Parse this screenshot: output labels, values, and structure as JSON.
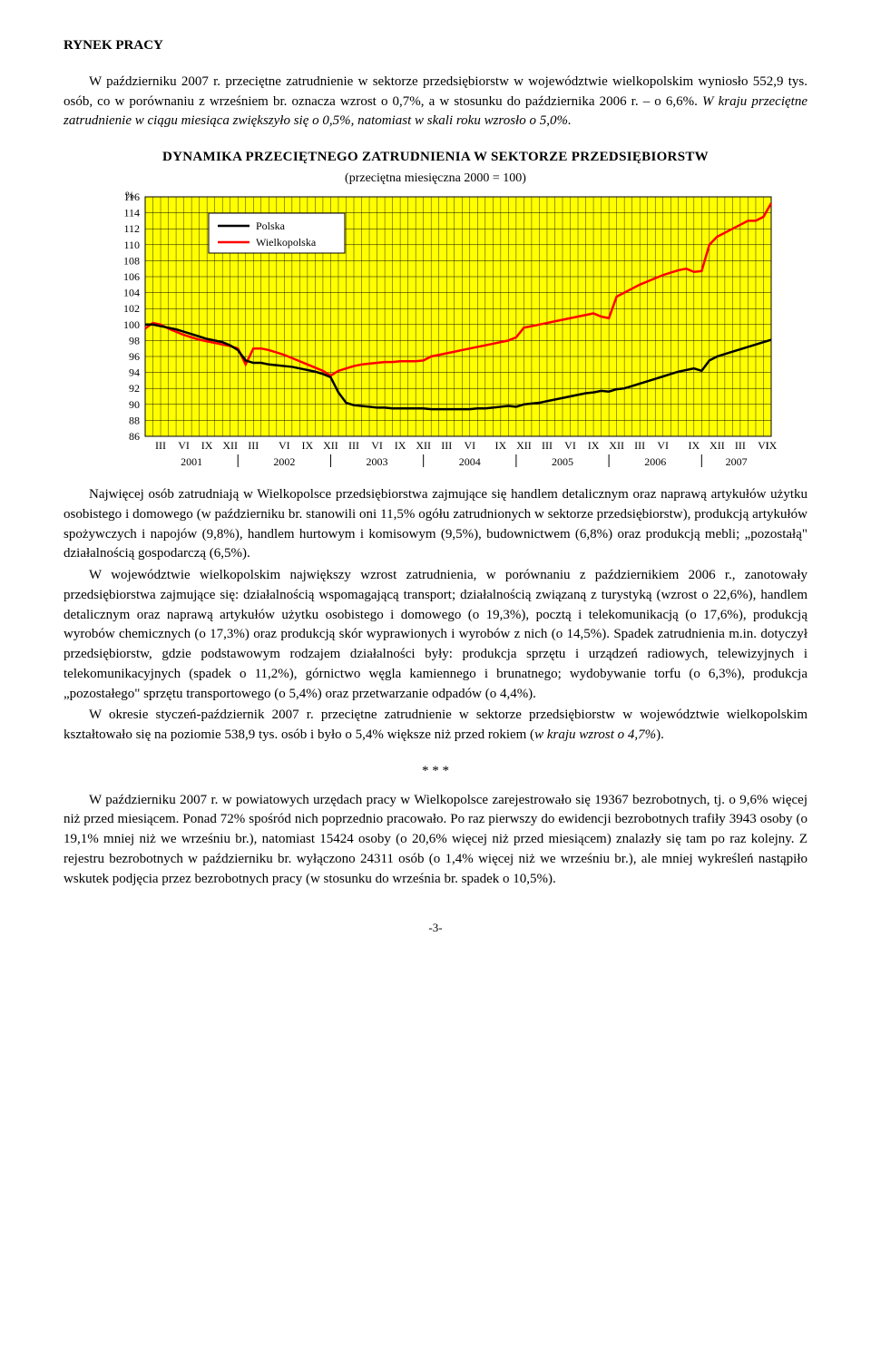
{
  "heading": "RYNEK  PRACY",
  "para1_a": "W październiku 2007 r. przeciętne zatrudnienie w sektorze przedsiębiorstw w województwie wielkopolskim wyniosło 552,9 tys. osób, co w porównaniu z wrześniem br. oznacza wzrost o 0,7%, a w stosunku do października 2006 r. – o 6,6%. ",
  "para1_b": "W kraju przeciętne zatrudnienie w ciągu miesiąca zwiększyło się o 0,5%, natomiast w skali roku wzrosło o 5,0%.",
  "chart": {
    "title": "DYNAMIKA  PRZECIĘTNEGO  ZATRUDNIENIA  W  SEKTORZE  PRZEDSIĘBIORSTW",
    "subtitle": "(przeciętna miesięczna 2000 = 100)",
    "y_unit": "%",
    "legend": [
      "Polska",
      "Wielkopolska"
    ],
    "yticks": [
      86,
      88,
      90,
      92,
      94,
      96,
      98,
      100,
      102,
      104,
      106,
      108,
      110,
      112,
      114,
      116
    ],
    "ylim": [
      86,
      116
    ],
    "grid_color": "#000000",
    "background_color": "#ffff00",
    "colors": {
      "polska": "#000000",
      "wielkopolska": "#ff0000"
    },
    "line_width": 2.5,
    "months": [
      "III",
      "VI",
      "IX",
      "XII",
      "III",
      "VI",
      "IX",
      "XII",
      "III",
      "VI",
      "IX",
      "XII",
      "III",
      "VI",
      "IX",
      "XII",
      "III",
      "VI",
      "IX",
      "XII",
      "III",
      "VI",
      "IX",
      "XII",
      "III",
      "VI",
      "IX"
    ],
    "year_bar": [
      {
        "label": "2001",
        "span": 4
      },
      {
        "label": "2002",
        "span": 4
      },
      {
        "label": "2003",
        "span": 4
      },
      {
        "label": "2004",
        "span": 4
      },
      {
        "label": "2005",
        "span": 4
      },
      {
        "label": "2006",
        "span": 4
      },
      {
        "label": "2007",
        "span": 3
      }
    ],
    "series_n": 82,
    "polska": [
      100,
      100,
      99.8,
      99.6,
      99.4,
      99.1,
      98.8,
      98.5,
      98.2,
      98,
      97.8,
      97.4,
      96.8,
      95.5,
      95.2,
      95.2,
      95,
      94.9,
      94.8,
      94.7,
      94.5,
      94.3,
      94.1,
      93.8,
      93.4,
      91.5,
      90.2,
      89.9,
      89.8,
      89.7,
      89.6,
      89.6,
      89.5,
      89.5,
      89.5,
      89.5,
      89.5,
      89.4,
      89.4,
      89.4,
      89.4,
      89.4,
      89.4,
      89.5,
      89.5,
      89.6,
      89.7,
      89.8,
      89.7,
      90,
      90.1,
      90.2,
      90.4,
      90.6,
      90.8,
      91,
      91.2,
      91.4,
      91.5,
      91.7,
      91.6,
      91.9,
      92,
      92.3,
      92.6,
      92.9,
      93.2,
      93.5,
      93.8,
      94.1,
      94.3,
      94.5,
      94.2,
      95.5,
      96,
      96.3,
      96.6,
      96.9,
      97.2,
      97.5,
      97.8,
      98.1
    ],
    "wielkopolska": [
      99.5,
      100.2,
      100,
      99.5,
      99.1,
      98.7,
      98.4,
      98.1,
      97.9,
      97.7,
      97.5,
      97.3,
      97,
      95,
      97,
      97,
      96.8,
      96.5,
      96.2,
      95.8,
      95.4,
      95,
      94.6,
      94.2,
      93.6,
      94.2,
      94.5,
      94.8,
      95,
      95.1,
      95.2,
      95.3,
      95.3,
      95.4,
      95.4,
      95.4,
      95.5,
      96,
      96.2,
      96.4,
      96.6,
      96.8,
      97,
      97.2,
      97.4,
      97.6,
      97.8,
      98,
      98.4,
      99.6,
      99.8,
      100,
      100.2,
      100.4,
      100.6,
      100.8,
      101,
      101.2,
      101.4,
      101,
      100.8,
      103.5,
      104,
      104.5,
      105,
      105.4,
      105.8,
      106.2,
      106.5,
      106.8,
      107,
      106.6,
      106.7,
      110,
      111,
      111.5,
      112,
      112.5,
      113,
      113,
      113.5,
      115.2
    ]
  },
  "para2": "Najwięcej osób zatrudniają w Wielkopolsce przedsiębiorstwa zajmujące się handlem detalicznym oraz naprawą artykułów użytku osobistego i domowego (w październiku br. stanowili oni 11,5% ogółu zatrudnionych w sektorze przedsiębiorstw), produkcją artykułów spożywczych i napojów (9,8%), handlem hurtowym i komisowym (9,5%), budownictwem (6,8%) oraz produkcją mebli; „pozostałą\" działalnością gospodarczą (6,5%).",
  "para3": "W województwie wielkopolskim największy wzrost zatrudnienia, w porównaniu z październikiem 2006 r., zanotowały przedsiębiorstwa zajmujące się: działalnością wspomagającą transport; działalnością związaną z turystyką (wzrost o 22,6%), handlem detalicznym oraz naprawą artykułów użytku osobistego i domowego (o 19,3%), pocztą i telekomunikacją (o 17,6%), produkcją wyrobów chemicznych (o 17,3%) oraz produkcją skór wyprawionych i wyrobów z nich (o 14,5%). Spadek zatrudnienia m.in. dotyczył przedsiębiorstw, gdzie podstawowym rodzajem działalności były: produkcja sprzętu i urządzeń radiowych, telewizyjnych i telekomunikacyjnych (spadek o 11,2%), górnictwo węgla kamiennego i brunatnego; wydobywanie torfu (o 6,3%), produkcja „pozostałego\" sprzętu transportowego (o 5,4%) oraz przetwarzanie odpadów (o 4,4%).",
  "para4_a": "W okresie styczeń-październik 2007 r. przeciętne zatrudnienie w sektorze przedsiębiorstw w województwie wielkopolskim kształtowało się na poziomie 538,9 tys. osób i było o 5,4% większe niż przed rokiem (",
  "para4_b": "w kraju wzrost o 4,7%",
  "para4_c": ").",
  "sep": "* * *",
  "para5": "W październiku 2007 r. w powiatowych urzędach pracy w Wielkopolsce zarejestrowało się 19367 bezrobotnych, tj. o 9,6% więcej niż przed miesiącem. Ponad 72% spośród nich poprzednio pracowało. Po raz pierwszy do ewidencji bezrobotnych trafiły 3943 osoby (o 19,1% mniej niż we wrześniu br.), natomiast 15424 osoby (o 20,6% więcej niż przed miesiącem) znalazły się tam po raz kolejny. Z rejestru bezrobotnych w październiku br. wyłączono 24311 osób (o 1,4% więcej niż we wrześniu br.), ale mniej wykreśleń nastąpiło wskutek podjęcia przez bezrobotnych pracy (w stosunku do września br. spadek o 10,5%).",
  "page_num": "-3-"
}
